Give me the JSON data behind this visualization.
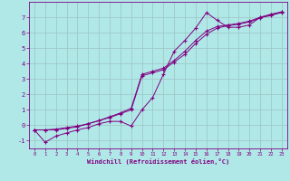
{
  "background_color": "#b0e8e8",
  "grid_color": "#a0c8c8",
  "line_color": "#800080",
  "marker": "+",
  "xlabel": "Windchill (Refroidissement éolien,°C)",
  "xlim": [
    -0.5,
    23.5
  ],
  "ylim": [
    -1.5,
    8.0
  ],
  "yticks": [
    -1,
    0,
    1,
    2,
    3,
    4,
    5,
    6,
    7
  ],
  "xticks": [
    0,
    1,
    2,
    3,
    4,
    5,
    6,
    7,
    8,
    9,
    10,
    11,
    12,
    13,
    14,
    15,
    16,
    17,
    18,
    19,
    20,
    21,
    22,
    23
  ],
  "line1_x": [
    0,
    1,
    2,
    3,
    4,
    5,
    6,
    7,
    8,
    9,
    10,
    11,
    12,
    13,
    14,
    15,
    16,
    17,
    18,
    19,
    20,
    21,
    22,
    23
  ],
  "line1_y": [
    -0.3,
    -1.1,
    -0.7,
    -0.5,
    -0.3,
    -0.15,
    0.1,
    0.25,
    0.25,
    -0.05,
    1.0,
    1.8,
    3.3,
    4.8,
    5.5,
    6.3,
    7.3,
    6.8,
    6.35,
    6.35,
    6.5,
    7.0,
    7.1,
    7.35
  ],
  "line2_x": [
    0,
    1,
    2,
    3,
    4,
    5,
    6,
    7,
    8,
    9,
    10,
    11,
    12,
    13,
    14,
    15,
    16,
    17,
    18,
    19,
    20,
    21,
    22,
    23
  ],
  "line2_y": [
    -0.3,
    -0.3,
    -0.3,
    -0.2,
    -0.1,
    0.1,
    0.3,
    0.55,
    0.8,
    1.1,
    3.3,
    3.5,
    3.7,
    4.2,
    4.8,
    5.5,
    6.1,
    6.4,
    6.5,
    6.6,
    6.75,
    7.0,
    7.2,
    7.35
  ],
  "line3_x": [
    0,
    1,
    2,
    3,
    4,
    5,
    6,
    7,
    8,
    9,
    10,
    11,
    12,
    13,
    14,
    15,
    16,
    17,
    18,
    19,
    20,
    21,
    22,
    23
  ],
  "line3_y": [
    -0.3,
    -0.3,
    -0.25,
    -0.15,
    -0.05,
    0.1,
    0.3,
    0.5,
    0.75,
    1.0,
    3.2,
    3.4,
    3.6,
    4.1,
    4.6,
    5.3,
    5.9,
    6.3,
    6.45,
    6.55,
    6.7,
    6.95,
    7.15,
    7.3
  ]
}
